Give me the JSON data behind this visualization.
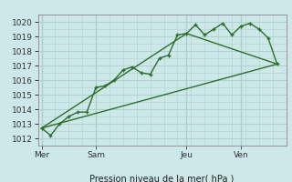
{
  "background_color": "#cce8e8",
  "grid_color": "#b0d0d0",
  "line_color": "#2d6e2d",
  "title": "Pression niveau de la mer( hPa )",
  "ylim": [
    1011.5,
    1020.5
  ],
  "day_labels": [
    "Mer",
    "Sam",
    "Jeu",
    "Ven"
  ],
  "day_positions": [
    0,
    3,
    8,
    11
  ],
  "series1_x": [
    0,
    0.5,
    1,
    1.5,
    2,
    2.5,
    3,
    3.5,
    4,
    4.5,
    5,
    5.5,
    6,
    6.5,
    7,
    7.5,
    8,
    8.5,
    9,
    9.5,
    10,
    10.5,
    11,
    11.5,
    12,
    12.5,
    13
  ],
  "series1_y": [
    1012.7,
    1012.2,
    1013.0,
    1013.5,
    1013.8,
    1013.8,
    1015.5,
    1015.6,
    1016.0,
    1016.7,
    1016.9,
    1016.5,
    1016.4,
    1017.5,
    1017.7,
    1019.1,
    1019.2,
    1019.8,
    1019.1,
    1019.5,
    1019.9,
    1019.1,
    1019.7,
    1019.9,
    1019.5,
    1018.9,
    1017.1
  ],
  "series2_x": [
    0,
    13
  ],
  "series2_y": [
    1012.7,
    1017.1
  ],
  "series3_x": [
    0,
    8,
    13
  ],
  "series3_y": [
    1012.7,
    1019.2,
    1017.1
  ],
  "yticks": [
    1012,
    1013,
    1014,
    1015,
    1016,
    1017,
    1018,
    1019,
    1020
  ],
  "vline_positions": [
    0,
    3,
    8,
    11
  ],
  "xlim": [
    -0.2,
    13.5
  ]
}
